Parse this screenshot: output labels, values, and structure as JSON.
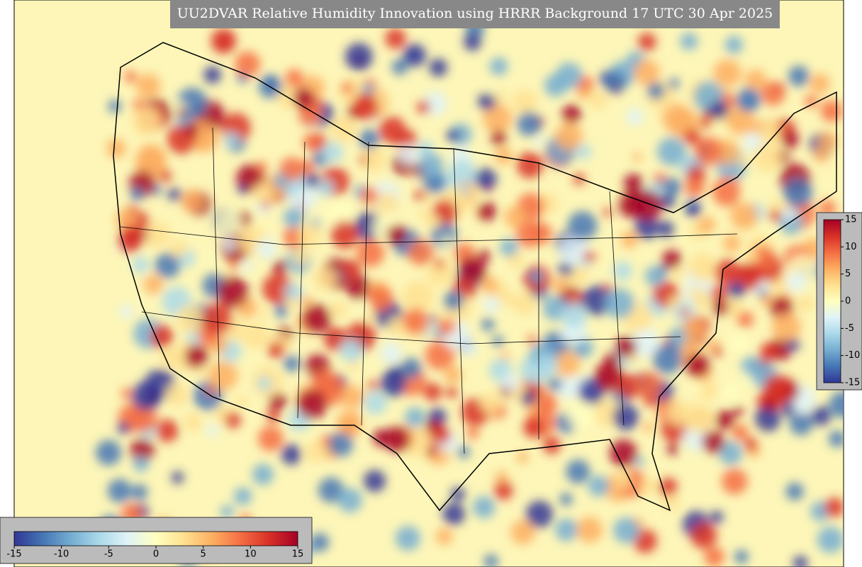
{
  "title": "UU2DVAR Relative Humidity Innovation using HRRR Background 17 UTC 30 Apr 2025",
  "colormap": [
    "#313695",
    "#4575b4",
    "#74add1",
    "#abd9e9",
    "#e0f3f8",
    "#ffffbf",
    "#fee090",
    "#fdae61",
    "#f46d43",
    "#d73027",
    "#a50026"
  ],
  "colorbars": [
    {
      "orientation": "horizontal",
      "range": [
        -15,
        15
      ],
      "ticks": [
        -15,
        -10,
        -5,
        0,
        5,
        10,
        15
      ]
    },
    {
      "orientation": "vertical",
      "range": [
        -15,
        15
      ],
      "ticks": [
        15,
        10,
        5,
        0,
        -5,
        -10,
        -15
      ]
    }
  ]
}
